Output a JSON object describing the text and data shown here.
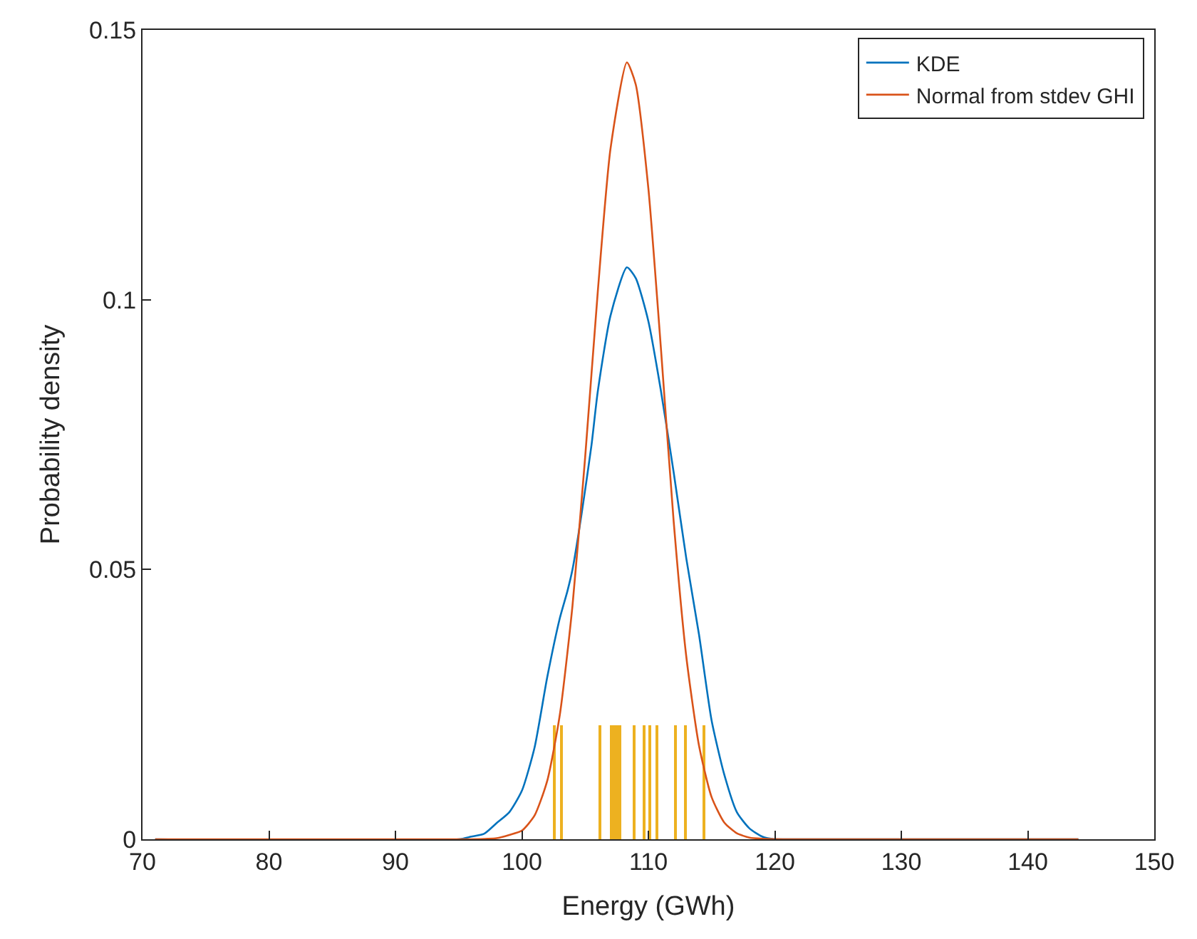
{
  "chart_data": {
    "type": "line",
    "xlabel": "Energy (GWh)",
    "ylabel": "Probability density",
    "xlim": [
      70,
      150
    ],
    "xticks": [
      70,
      80,
      90,
      100,
      110,
      120,
      130,
      140,
      150
    ],
    "ylim": [
      0,
      0.15
    ],
    "yticks": [
      0,
      0.05,
      0.1,
      0.15
    ],
    "legend": "top right",
    "series": [
      {
        "name": "KDE",
        "color": "#0072bd",
        "x": [
          71,
          95,
          96,
          97,
          98,
          99,
          100,
          101,
          102,
          103,
          103.6,
          104,
          104.7,
          105.5,
          106,
          107,
          108.3,
          109,
          110,
          111,
          112,
          113,
          114,
          115,
          116,
          117,
          118,
          119,
          120,
          121,
          144
        ],
        "values": [
          0,
          0,
          0.0005,
          0.001,
          0.003,
          0.005,
          0.009,
          0.017,
          0.03,
          0.041,
          0.046,
          0.05,
          0.06,
          0.073,
          0.083,
          0.097,
          0.106,
          0.104,
          0.096,
          0.083,
          0.068,
          0.052,
          0.038,
          0.022,
          0.012,
          0.005,
          0.002,
          0.0005,
          0,
          0,
          0
        ]
      },
      {
        "name": "Normal from stdev GHI",
        "color": "#d95319",
        "x": [
          71,
          96,
          98,
          99,
          100,
          101,
          102,
          103,
          104,
          105,
          106,
          107,
          108.3,
          109,
          110,
          111,
          112,
          113,
          114,
          115,
          116,
          117,
          118,
          119,
          121,
          144
        ],
        "values": [
          0,
          0,
          0.0002,
          0.0008,
          0.0016,
          0.0044,
          0.0108,
          0.0231,
          0.0433,
          0.0708,
          0.1015,
          0.1279,
          0.144,
          0.1399,
          0.1206,
          0.0907,
          0.0589,
          0.0338,
          0.0174,
          0.0078,
          0.0031,
          0.0011,
          0.0003,
          0.0001,
          0,
          0
        ]
      },
      {
        "type": "bar",
        "color": "#edb120",
        "x": [
          102.6,
          103.1,
          106.2,
          107.1,
          107.3,
          107.5,
          107.7,
          108.9,
          109.7,
          110.1,
          110.7,
          112.2,
          112.9,
          114.4
        ],
        "values": [
          0.021,
          0.021,
          0.021,
          0.021,
          0.021,
          0.021,
          0.021,
          0.021,
          0.021,
          0.021,
          0.021,
          0.021,
          0.021,
          0.021
        ]
      }
    ]
  }
}
